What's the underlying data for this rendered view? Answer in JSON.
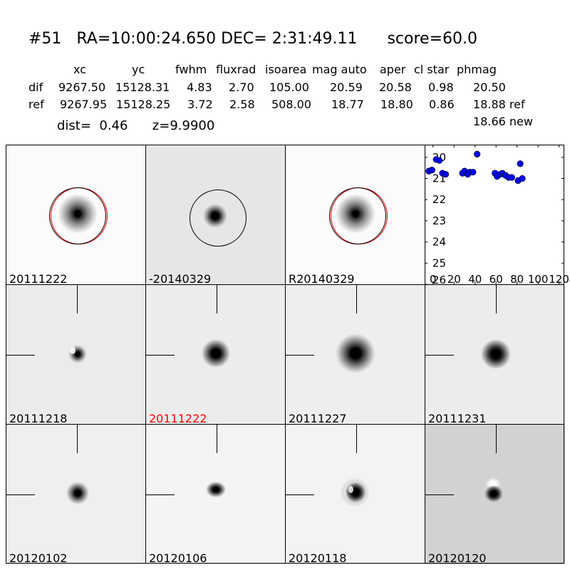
{
  "header": {
    "title": "#51   RA=10:00:24.650 DEC= 2:31:49.11      score=60.0",
    "columns": [
      "xc",
      "yc",
      "fwhm",
      "fluxrad",
      "isoarea",
      "mag auto",
      "aper",
      "cl star",
      "phmag"
    ],
    "rows": [
      {
        "name": "dif",
        "values": [
          "9267.50",
          "15128.31",
          "4.83",
          "2.70",
          "105.00",
          "20.59",
          "20.58",
          "0.98",
          "20.50"
        ]
      },
      {
        "name": "ref",
        "values": [
          "9267.95",
          "15128.25",
          "3.72",
          "2.58",
          "508.00",
          "18.77",
          "18.80",
          "0.86",
          "18.88 ref"
        ]
      }
    ],
    "extra": "18.66 new",
    "dist_line": "dist=  0.46      z=9.9900"
  },
  "stamps": {
    "top": [
      "20111222",
      "-20140329",
      "R20140329"
    ],
    "epochs": [
      "20111218",
      "20111222",
      "20111227",
      "20111231",
      "20120102",
      "20120106",
      "20120118",
      "20120120"
    ],
    "highlight_color": "#ff0000"
  },
  "chart_data": {
    "type": "scatter",
    "title": "",
    "xlabel": "",
    "ylabel": "",
    "xlim": [
      -8,
      125
    ],
    "ylim": [
      26,
      19.4
    ],
    "y_inverted": true,
    "xticks": [
      0,
      20,
      40,
      60,
      80,
      100,
      120
    ],
    "yticks": [
      20,
      21,
      22,
      23,
      24,
      25,
      26
    ],
    "grid": false,
    "series": [
      {
        "marker_color": "#0000ff",
        "x": [
          -4,
          -1,
          3,
          6,
          9,
          12,
          28,
          30,
          33,
          35,
          38,
          42,
          59,
          61,
          64,
          66,
          69,
          72,
          75,
          81,
          83,
          85
        ],
        "y": [
          20.65,
          20.6,
          20.1,
          20.15,
          20.75,
          20.8,
          20.75,
          20.65,
          20.8,
          20.7,
          20.7,
          19.85,
          20.75,
          20.9,
          20.8,
          20.75,
          20.85,
          20.95,
          20.95,
          21.1,
          20.3,
          21.0
        ]
      }
    ]
  }
}
